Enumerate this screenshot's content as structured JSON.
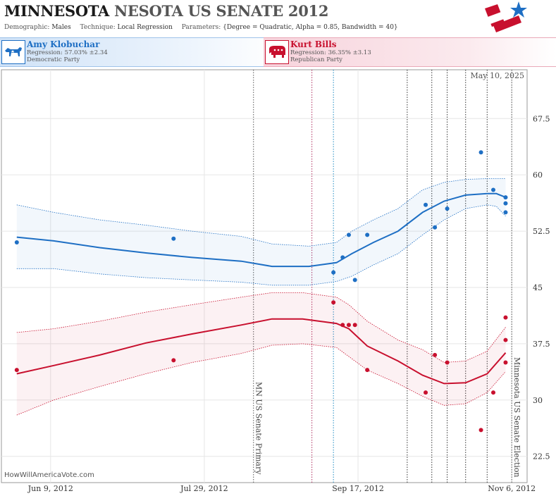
{
  "header": {
    "title_state": "MINNESOTA",
    "title_rest": "NESOTA US SENATE 2012",
    "demographic_label": "Demographic:",
    "demographic_value": "Males",
    "technique_label": "Technique:",
    "technique_value": "Local Regression",
    "parameters_label": "Parameters:",
    "parameters_value": "{Degree = Quadratic, Alpha = 0.85, Bandwidth = 40}"
  },
  "candidates": {
    "dem": {
      "name": "Amy Klobuchar",
      "regression": "Regression: 57.03% ±2.34",
      "party": "Democratic Party",
      "color": "#1e6fc4"
    },
    "rep": {
      "name": "Kurt Bills",
      "regression": "Regression: 36.35% ±3.13",
      "party": "Republican Party",
      "color": "#c8102e"
    }
  },
  "chart_data": {
    "type": "scatter",
    "date_label": "May 10, 2025",
    "watermark": "HowWillAmericaVote.com",
    "x_range": [
      "2012-05-24",
      "2012-11-11"
    ],
    "ylim": [
      19,
      74
    ],
    "y_ticks": [
      22.5,
      30,
      37.5,
      45,
      52.5,
      60,
      67.5
    ],
    "y_tick_labels": [
      "22.5",
      "30",
      "37.5",
      "45",
      "52.5",
      "60",
      "67.5"
    ],
    "x_ticks": [
      "2012-06-09",
      "2012-07-29",
      "2012-09-17",
      "2012-11-06"
    ],
    "x_tick_labels": [
      "Jun 9, 2012",
      "Jul 29, 2012",
      "Sep 17, 2012",
      "Nov 6, 2012"
    ],
    "x_grid": [
      "2012-06-09",
      "2012-07-29",
      "2012-09-17",
      "2012-11-06"
    ],
    "y_grid": [
      22.5,
      30,
      37.5,
      45,
      52.5,
      60,
      67.5
    ],
    "events": [
      {
        "date": "2012-08-14",
        "label": "MN US Senate Primary",
        "color": "#555555"
      },
      {
        "date": "2012-11-06",
        "label": "Minnesota US Senate Election",
        "color": "#555555"
      }
    ],
    "marker_lines": [
      {
        "date": "2012-09-02",
        "color": "#b03060"
      },
      {
        "date": "2012-09-09",
        "color": "#1e8bc3"
      },
      {
        "date": "2012-10-03",
        "color": "#333333"
      },
      {
        "date": "2012-10-11",
        "color": "#333333"
      },
      {
        "date": "2012-10-16",
        "color": "#333333"
      },
      {
        "date": "2012-10-22",
        "color": "#333333"
      },
      {
        "date": "2012-10-29",
        "color": "#333333"
      }
    ],
    "series": [
      {
        "name": "Amy Klobuchar",
        "color": "#1e6fc4",
        "points": [
          [
            "2012-05-29",
            51
          ],
          [
            "2012-07-19",
            51.5
          ],
          [
            "2012-09-09",
            47
          ],
          [
            "2012-09-12",
            49
          ],
          [
            "2012-09-14",
            52
          ],
          [
            "2012-09-16",
            46
          ],
          [
            "2012-09-20",
            52
          ],
          [
            "2012-10-09",
            56
          ],
          [
            "2012-10-12",
            53
          ],
          [
            "2012-10-16",
            55.5
          ],
          [
            "2012-10-27",
            63
          ],
          [
            "2012-10-31",
            58
          ],
          [
            "2012-11-04",
            57
          ],
          [
            "2012-11-04",
            56.2
          ],
          [
            "2012-11-04",
            55
          ]
        ],
        "trend": [
          [
            "2012-05-29",
            51.7
          ],
          [
            "2012-06-10",
            51.2
          ],
          [
            "2012-06-25",
            50.3
          ],
          [
            "2012-07-10",
            49.6
          ],
          [
            "2012-07-25",
            49
          ],
          [
            "2012-08-10",
            48.5
          ],
          [
            "2012-08-20",
            47.8
          ],
          [
            "2012-09-01",
            47.8
          ],
          [
            "2012-09-10",
            48.3
          ],
          [
            "2012-09-15",
            49.5
          ],
          [
            "2012-09-22",
            51
          ],
          [
            "2012-09-30",
            52.5
          ],
          [
            "2012-10-08",
            55
          ],
          [
            "2012-10-15",
            56.5
          ],
          [
            "2012-10-22",
            57.3
          ],
          [
            "2012-10-29",
            57.5
          ],
          [
            "2012-11-01",
            57.5
          ],
          [
            "2012-11-04",
            57
          ]
        ],
        "upper": [
          [
            "2012-05-29",
            56
          ],
          [
            "2012-06-10",
            55
          ],
          [
            "2012-06-25",
            54
          ],
          [
            "2012-07-10",
            53.3
          ],
          [
            "2012-07-25",
            52.5
          ],
          [
            "2012-08-10",
            51.8
          ],
          [
            "2012-08-20",
            50.8
          ],
          [
            "2012-09-01",
            50.5
          ],
          [
            "2012-09-10",
            51
          ],
          [
            "2012-09-15",
            52.5
          ],
          [
            "2012-09-22",
            54
          ],
          [
            "2012-09-30",
            55.5
          ],
          [
            "2012-10-08",
            58
          ],
          [
            "2012-10-15",
            59
          ],
          [
            "2012-10-22",
            59.4
          ],
          [
            "2012-10-29",
            59.5
          ],
          [
            "2012-11-01",
            59.5
          ],
          [
            "2012-11-04",
            59.5
          ]
        ],
        "lower": [
          [
            "2012-05-29",
            47.5
          ],
          [
            "2012-06-10",
            47.5
          ],
          [
            "2012-06-25",
            46.8
          ],
          [
            "2012-07-10",
            46.3
          ],
          [
            "2012-07-25",
            46
          ],
          [
            "2012-08-10",
            45.7
          ],
          [
            "2012-08-20",
            45.3
          ],
          [
            "2012-09-01",
            45.3
          ],
          [
            "2012-09-10",
            45.8
          ],
          [
            "2012-09-15",
            46.5
          ],
          [
            "2012-09-22",
            48
          ],
          [
            "2012-09-30",
            49.5
          ],
          [
            "2012-10-08",
            52
          ],
          [
            "2012-10-15",
            54
          ],
          [
            "2012-10-22",
            55.5
          ],
          [
            "2012-10-29",
            56
          ],
          [
            "2012-11-01",
            55.8
          ],
          [
            "2012-11-04",
            54.5
          ]
        ]
      },
      {
        "name": "Kurt Bills",
        "color": "#c8102e",
        "points": [
          [
            "2012-05-29",
            34
          ],
          [
            "2012-07-19",
            35.3
          ],
          [
            "2012-09-09",
            43
          ],
          [
            "2012-09-12",
            40
          ],
          [
            "2012-09-14",
            40
          ],
          [
            "2012-09-16",
            40
          ],
          [
            "2012-09-20",
            34
          ],
          [
            "2012-10-09",
            31
          ],
          [
            "2012-10-12",
            36
          ],
          [
            "2012-10-16",
            35
          ],
          [
            "2012-10-27",
            26
          ],
          [
            "2012-10-31",
            31
          ],
          [
            "2012-11-04",
            41
          ],
          [
            "2012-11-04",
            38
          ],
          [
            "2012-11-04",
            35
          ]
        ],
        "trend": [
          [
            "2012-05-29",
            33.5
          ],
          [
            "2012-06-10",
            34.6
          ],
          [
            "2012-06-25",
            36
          ],
          [
            "2012-07-10",
            37.6
          ],
          [
            "2012-07-25",
            38.8
          ],
          [
            "2012-08-10",
            40
          ],
          [
            "2012-08-20",
            40.8
          ],
          [
            "2012-08-30",
            40.8
          ],
          [
            "2012-09-10",
            40.2
          ],
          [
            "2012-09-14",
            39.5
          ],
          [
            "2012-09-20",
            37.2
          ],
          [
            "2012-09-30",
            35.2
          ],
          [
            "2012-10-08",
            33.3
          ],
          [
            "2012-10-15",
            32.2
          ],
          [
            "2012-10-22",
            32.3
          ],
          [
            "2012-10-29",
            33.5
          ],
          [
            "2012-11-04",
            36.3
          ]
        ],
        "upper": [
          [
            "2012-05-29",
            39
          ],
          [
            "2012-06-10",
            39.5
          ],
          [
            "2012-06-25",
            40.5
          ],
          [
            "2012-07-10",
            41.7
          ],
          [
            "2012-07-25",
            42.7
          ],
          [
            "2012-08-10",
            43.7
          ],
          [
            "2012-08-20",
            44.3
          ],
          [
            "2012-08-30",
            44.3
          ],
          [
            "2012-09-10",
            43.7
          ],
          [
            "2012-09-14",
            42.7
          ],
          [
            "2012-09-20",
            40.5
          ],
          [
            "2012-09-30",
            38
          ],
          [
            "2012-10-08",
            36.7
          ],
          [
            "2012-10-15",
            35
          ],
          [
            "2012-10-22",
            35.2
          ],
          [
            "2012-10-29",
            36.5
          ],
          [
            "2012-11-04",
            39.7
          ]
        ],
        "lower": [
          [
            "2012-05-29",
            28
          ],
          [
            "2012-06-10",
            30
          ],
          [
            "2012-06-25",
            31.8
          ],
          [
            "2012-07-10",
            33.5
          ],
          [
            "2012-07-25",
            35
          ],
          [
            "2012-08-10",
            36.2
          ],
          [
            "2012-08-20",
            37.3
          ],
          [
            "2012-08-30",
            37.5
          ],
          [
            "2012-09-10",
            37
          ],
          [
            "2012-09-14",
            35.8
          ],
          [
            "2012-09-20",
            34
          ],
          [
            "2012-09-30",
            32.2
          ],
          [
            "2012-10-08",
            30.5
          ],
          [
            "2012-10-15",
            29.3
          ],
          [
            "2012-10-22",
            29.5
          ],
          [
            "2012-10-29",
            31
          ],
          [
            "2012-11-04",
            33.8
          ]
        ]
      }
    ]
  }
}
